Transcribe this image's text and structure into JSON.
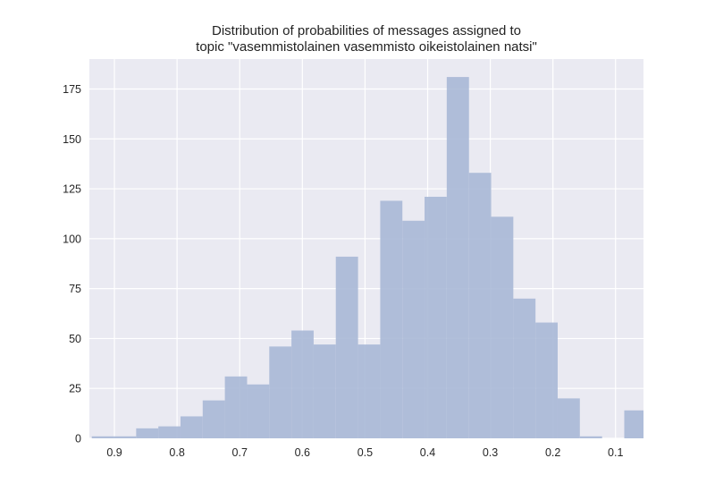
{
  "chart_data": {
    "type": "bar",
    "title_lines": [
      "Distribution of probabilities of messages assigned to",
      "topic \"vasemmistolainen vasemmisto oikeistolainen natsi\""
    ],
    "xlabel": "",
    "ylabel": "",
    "x_axis_inverted": true,
    "xlim": [
      0.94,
      0.0554
    ],
    "ylim": [
      0,
      190
    ],
    "xticks": [
      0.9,
      0.8,
      0.7,
      0.6,
      0.5,
      0.4,
      0.3,
      0.2,
      0.1
    ],
    "xtick_labels": [
      "0.9",
      "0.8",
      "0.7",
      "0.6",
      "0.5",
      "0.4",
      "0.3",
      "0.2",
      "0.1"
    ],
    "yticks": [
      0,
      25,
      50,
      75,
      100,
      125,
      150,
      175
    ],
    "ytick_labels": [
      "0",
      "25",
      "50",
      "75",
      "100",
      "125",
      "150",
      "175"
    ],
    "grid": true,
    "bin_edges": [
      0.9362,
      0.9007,
      0.8653,
      0.8299,
      0.7945,
      0.7591,
      0.7237,
      0.6882,
      0.6528,
      0.6174,
      0.582,
      0.5466,
      0.5111,
      0.4757,
      0.4403,
      0.4049,
      0.3695,
      0.334,
      0.2986,
      0.2632,
      0.2278,
      0.1924,
      0.157,
      0.1215,
      0.0861,
      0.0554
    ],
    "values": [
      1,
      1,
      5,
      6,
      11,
      19,
      31,
      27,
      46,
      54,
      47,
      91,
      47,
      119,
      109,
      121,
      181,
      133,
      111,
      70,
      58,
      20,
      1,
      0,
      14
    ],
    "colors": {
      "bar": "#a8b8d6",
      "plot_background": "#eaeaf2",
      "grid": "#ffffff",
      "text": "#262626"
    }
  }
}
